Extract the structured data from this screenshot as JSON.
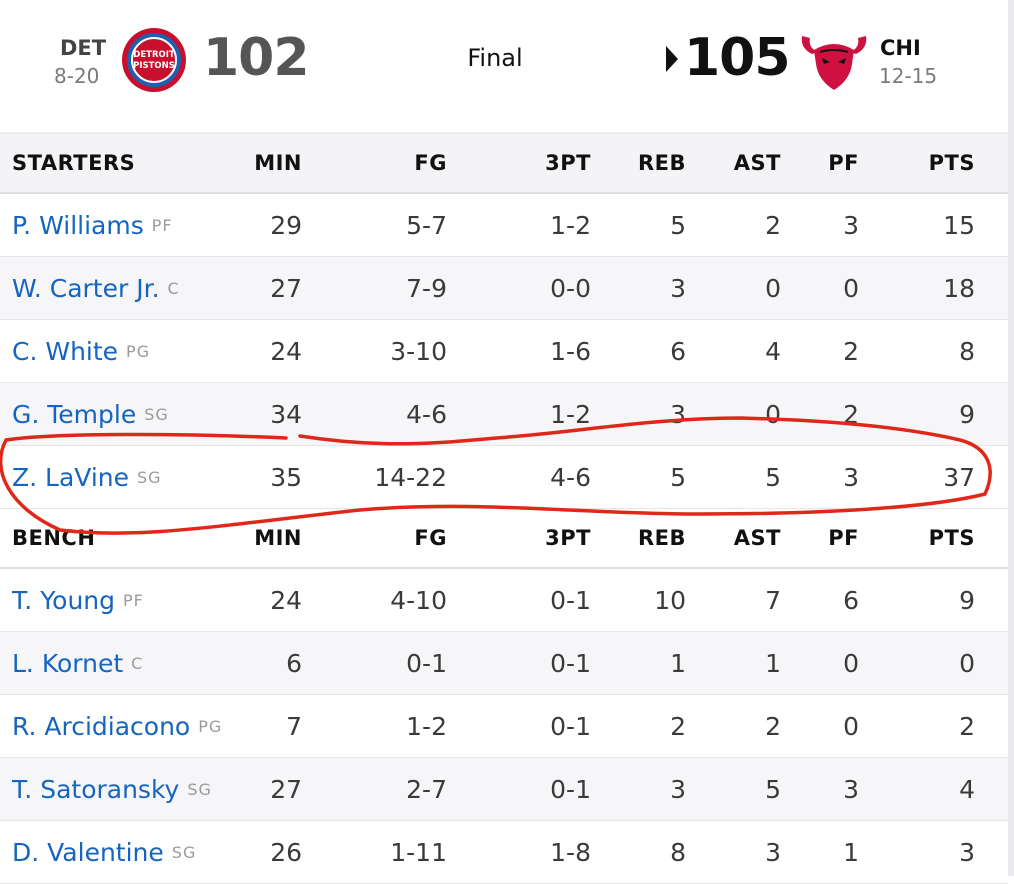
{
  "game": {
    "away": {
      "abbr": "DET",
      "record": "8-20",
      "score": "102",
      "logo_text_1": "DETROIT",
      "logo_text_2": "PISTONS",
      "logo_color": "#1d5fb0",
      "logo_accent": "#c8102e"
    },
    "status": "Final",
    "home": {
      "abbr": "CHI",
      "record": "12-15",
      "score": "105",
      "logo_color": "#ce1141",
      "winner_marker": "caret-right-icon"
    }
  },
  "columns": [
    "MIN",
    "FG",
    "3PT",
    "REB",
    "AST",
    "PF",
    "PTS"
  ],
  "sections": [
    {
      "label": "STARTERS",
      "players": [
        {
          "name": "P. Williams",
          "pos": "PF",
          "stats": [
            "29",
            "5-7",
            "1-2",
            "5",
            "2",
            "3",
            "15"
          ]
        },
        {
          "name": "W. Carter Jr.",
          "pos": "C",
          "stats": [
            "27",
            "7-9",
            "0-0",
            "3",
            "0",
            "0",
            "18"
          ]
        },
        {
          "name": "C. White",
          "pos": "PG",
          "stats": [
            "24",
            "3-10",
            "1-6",
            "6",
            "4",
            "2",
            "8"
          ]
        },
        {
          "name": "G. Temple",
          "pos": "SG",
          "stats": [
            "34",
            "4-6",
            "1-2",
            "3",
            "0",
            "2",
            "9"
          ]
        },
        {
          "name": "Z. LaVine",
          "pos": "SG",
          "stats": [
            "35",
            "14-22",
            "4-6",
            "5",
            "5",
            "3",
            "37"
          ]
        }
      ]
    },
    {
      "label": "BENCH",
      "players": [
        {
          "name": "T. Young",
          "pos": "PF",
          "stats": [
            "24",
            "4-10",
            "0-1",
            "10",
            "7",
            "6",
            "9"
          ]
        },
        {
          "name": "L. Kornet",
          "pos": "C",
          "stats": [
            "6",
            "0-1",
            "0-1",
            "1",
            "1",
            "0",
            "0"
          ]
        },
        {
          "name": "R. Arcidiacono",
          "pos": "PG",
          "stats": [
            "7",
            "1-2",
            "0-1",
            "2",
            "2",
            "0",
            "2"
          ]
        },
        {
          "name": "T. Satoransky",
          "pos": "SG",
          "stats": [
            "27",
            "2-7",
            "0-1",
            "3",
            "5",
            "3",
            "4"
          ]
        },
        {
          "name": "D. Valentine",
          "pos": "SG",
          "stats": [
            "26",
            "1-11",
            "1-8",
            "8",
            "3",
            "1",
            "3"
          ]
        }
      ]
    }
  ],
  "annotation": {
    "shape": "hand-drawn-ellipse",
    "color": "#e0281a",
    "highlights_player": "Z. LaVine"
  }
}
